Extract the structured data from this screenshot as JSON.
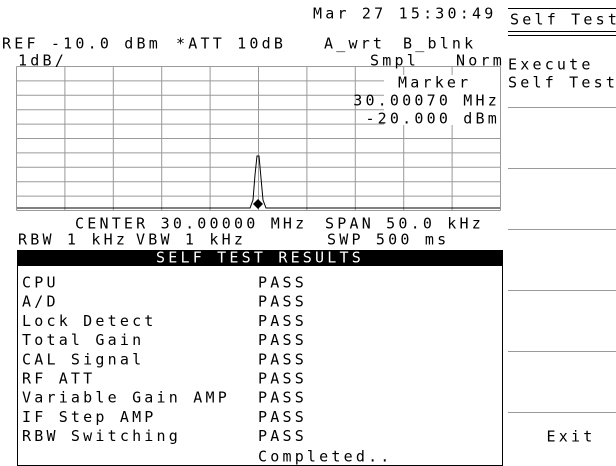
{
  "header": {
    "datetime": "Mar 27 15:30:49",
    "ref": "REF -10.0 dBm",
    "att": "*ATT 10dB",
    "trace_a": "A_wrt",
    "trace_b": "B_blnk",
    "scale": "1dB/",
    "detector": "Smpl",
    "mode": "Norm"
  },
  "marker": {
    "label": "Marker",
    "frequency": "30.00070 MHz",
    "level": "-20.000 dBm"
  },
  "footer": {
    "center": "CENTER 30.00000 MHz",
    "span": "SPAN 50.0 kHz",
    "rbw": "RBW 1 kHz",
    "vbw": "VBW 1 kHz",
    "swp": "SWP 500 ms"
  },
  "results": {
    "title": "SELF TEST RESULTS",
    "rows": [
      [
        "CPU",
        "PASS"
      ],
      [
        "A/D",
        "PASS"
      ],
      [
        "Lock Detect",
        "PASS"
      ],
      [
        "Total Gain",
        "PASS"
      ],
      [
        "CAL Signal",
        "PASS"
      ],
      [
        "RF ATT",
        "PASS"
      ],
      [
        "Variable Gain AMP",
        "PASS"
      ],
      [
        "IF Step AMP",
        "PASS"
      ],
      [
        "RBW Switching",
        "PASS"
      ]
    ],
    "status": "Completed.."
  },
  "softkeys": {
    "title": "Self Test",
    "execute": [
      "Execute",
      "Self Test"
    ],
    "exit": "Exit"
  }
}
